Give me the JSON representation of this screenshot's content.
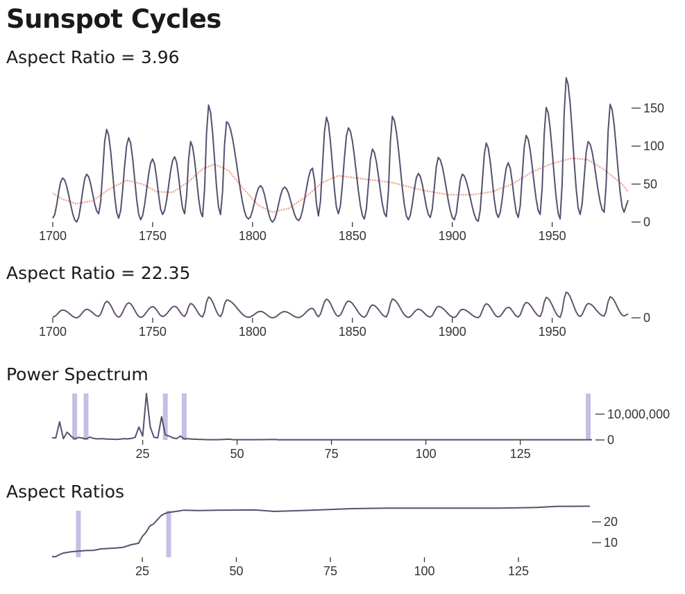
{
  "page": {
    "title": "Sunspot Cycles"
  },
  "colors": {
    "series": "#55506e",
    "smooth": "#ef9a85",
    "highlight": "#c5bfe6",
    "axis": "#333333"
  },
  "chart_data": [
    {
      "type": "line",
      "title": "Aspect Ratio = 3.96",
      "x_axis": {
        "ticks": [
          1700,
          1750,
          1800,
          1850,
          1900,
          1950
        ],
        "labels": [
          "1700",
          "1750",
          "1800",
          "1850",
          "1900",
          "1950"
        ]
      },
      "y_axis": {
        "ticks": [
          0,
          50,
          100,
          150
        ],
        "labels": [
          "0",
          "50",
          "100",
          "150"
        ],
        "side": "right"
      },
      "xlim": [
        1700,
        1988
      ],
      "ylim": [
        0,
        190
      ],
      "series": [
        {
          "role": "yearly",
          "peaks": [
            [
              1705,
              58
            ],
            [
              1717,
              63
            ],
            [
              1727,
              122
            ],
            [
              1738,
              111
            ],
            [
              1750,
              83
            ],
            [
              1761,
              86
            ],
            [
              1769,
              106
            ],
            [
              1778,
              154
            ],
            [
              1787,
              132
            ],
            [
              1804,
              48
            ],
            [
              1816,
              46
            ],
            [
              1830,
              71
            ],
            [
              1837,
              138
            ],
            [
              1848,
              124
            ],
            [
              1860,
              96
            ],
            [
              1870,
              139
            ],
            [
              1883,
              64
            ],
            [
              1893,
              85
            ],
            [
              1905,
              63
            ],
            [
              1917,
              104
            ],
            [
              1928,
              78
            ],
            [
              1937,
              114
            ],
            [
              1947,
              151
            ],
            [
              1957,
              190
            ],
            [
              1968,
              106
            ],
            [
              1979,
              155
            ]
          ],
          "minima": [
            [
              1700,
              5
            ],
            [
              1712,
              0
            ],
            [
              1723,
              11
            ],
            [
              1733,
              5
            ],
            [
              1744,
              3
            ],
            [
              1755,
              10
            ],
            [
              1766,
              11
            ],
            [
              1775,
              7
            ],
            [
              1784,
              10
            ],
            [
              1798,
              4
            ],
            [
              1810,
              0
            ],
            [
              1823,
              2
            ],
            [
              1833,
              8
            ],
            [
              1843,
              11
            ],
            [
              1856,
              4
            ],
            [
              1867,
              7
            ],
            [
              1878,
              3
            ],
            [
              1889,
              6
            ],
            [
              1901,
              3
            ],
            [
              1913,
              1
            ],
            [
              1923,
              6
            ],
            [
              1933,
              6
            ],
            [
              1944,
              10
            ],
            [
              1954,
              4
            ],
            [
              1964,
              10
            ],
            [
              1976,
              13
            ],
            [
              1986,
              13
            ]
          ],
          "end": [
            1988,
            29
          ]
        },
        {
          "role": "smoothed",
          "points": [
            [
              1700,
              38
            ],
            [
              1705,
              30
            ],
            [
              1712,
              24
            ],
            [
              1720,
              28
            ],
            [
              1728,
              43
            ],
            [
              1737,
              55
            ],
            [
              1745,
              50
            ],
            [
              1752,
              40
            ],
            [
              1760,
              39
            ],
            [
              1768,
              53
            ],
            [
              1775,
              70
            ],
            [
              1781,
              76
            ],
            [
              1788,
              68
            ],
            [
              1795,
              45
            ],
            [
              1803,
              22
            ],
            [
              1810,
              13
            ],
            [
              1818,
              18
            ],
            [
              1827,
              34
            ],
            [
              1835,
              52
            ],
            [
              1843,
              61
            ],
            [
              1855,
              57
            ],
            [
              1870,
              52
            ],
            [
              1885,
              42
            ],
            [
              1898,
              36
            ],
            [
              1910,
              36
            ],
            [
              1920,
              40
            ],
            [
              1930,
              50
            ],
            [
              1940,
              66
            ],
            [
              1950,
              77
            ],
            [
              1960,
              84
            ],
            [
              1968,
              82
            ],
            [
              1976,
              69
            ],
            [
              1985,
              50
            ],
            [
              1988,
              40
            ]
          ]
        }
      ]
    },
    {
      "type": "line",
      "title": "Aspect Ratio = 22.35",
      "x_axis": {
        "ticks": [
          1700,
          1750,
          1800,
          1850,
          1900,
          1950
        ],
        "labels": [
          "1700",
          "1750",
          "1800",
          "1850",
          "1900",
          "1950"
        ]
      },
      "y_axis": {
        "ticks": [
          0
        ],
        "labels": [
          "0"
        ],
        "side": "right"
      },
      "xlim": [
        1700,
        1988
      ],
      "ylim": [
        0,
        190
      ],
      "series_same_as_chart": 0
    },
    {
      "type": "line",
      "title": "Power Spectrum",
      "x_axis": {
        "ticks": [
          25,
          50,
          75,
          100,
          125
        ],
        "labels": [
          "25",
          "50",
          "75",
          "100",
          "125"
        ]
      },
      "y_axis": {
        "ticks": [
          0,
          10000000
        ],
        "labels": [
          "0",
          "10,000,000"
        ],
        "side": "right"
      },
      "xlim": [
        1,
        144
      ],
      "ylim": [
        0,
        18000000
      ],
      "values": [
        [
          1,
          800000
        ],
        [
          2,
          800000
        ],
        [
          3,
          7000000
        ],
        [
          4,
          500000
        ],
        [
          5,
          3000000
        ],
        [
          6,
          1500000
        ],
        [
          7,
          400000
        ],
        [
          8,
          1000000
        ],
        [
          9,
          700000
        ],
        [
          10,
          400000
        ],
        [
          11,
          1100000
        ],
        [
          12,
          600000
        ],
        [
          13,
          400000
        ],
        [
          14,
          500000
        ],
        [
          15,
          400000
        ],
        [
          16,
          300000
        ],
        [
          17,
          300000
        ],
        [
          18,
          200000
        ],
        [
          19,
          300000
        ],
        [
          20,
          500000
        ],
        [
          21,
          400000
        ],
        [
          22,
          600000
        ],
        [
          23,
          1000000
        ],
        [
          24,
          5000000
        ],
        [
          25,
          1500000
        ],
        [
          26,
          18000000
        ],
        [
          27,
          5000000
        ],
        [
          28,
          1000000
        ],
        [
          29,
          800000
        ],
        [
          30,
          9000000
        ],
        [
          31,
          2000000
        ],
        [
          32,
          1500000
        ],
        [
          33,
          800000
        ],
        [
          34,
          500000
        ],
        [
          35,
          1500000
        ],
        [
          36,
          400000
        ],
        [
          37,
          500000
        ],
        [
          38,
          300000
        ],
        [
          39,
          300000
        ],
        [
          40,
          200000
        ],
        [
          41,
          200000
        ],
        [
          42,
          100000
        ],
        [
          45,
          100000
        ],
        [
          48,
          300000
        ],
        [
          49,
          100000
        ],
        [
          55,
          100000
        ],
        [
          60,
          200000
        ],
        [
          61,
          50000
        ],
        [
          144,
          50000
        ]
      ],
      "highlights": [
        7,
        10,
        31,
        36,
        143
      ]
    },
    {
      "type": "line",
      "title": "Aspect Ratios",
      "x_axis": {
        "ticks": [
          25,
          50,
          75,
          100,
          125
        ],
        "labels": [
          "25",
          "50",
          "75",
          "100",
          "125"
        ]
      },
      "y_axis": {
        "ticks": [
          10,
          20
        ],
        "labels": [
          "10",
          "20"
        ],
        "side": "right"
      },
      "xlim": [
        1,
        144
      ],
      "ylim": [
        3.3,
        30.5
      ],
      "values": [
        [
          1,
          3.3
        ],
        [
          2,
          3.3
        ],
        [
          3,
          4.3
        ],
        [
          4,
          5.0
        ],
        [
          5,
          5.3
        ],
        [
          6,
          5.6
        ],
        [
          7,
          5.8
        ],
        [
          10,
          6.2
        ],
        [
          12,
          6.3
        ],
        [
          14,
          7.0
        ],
        [
          18,
          7.4
        ],
        [
          20,
          7.8
        ],
        [
          22,
          9.0
        ],
        [
          24,
          9.7
        ],
        [
          25,
          13
        ],
        [
          26,
          15
        ],
        [
          27,
          18
        ],
        [
          28,
          19
        ],
        [
          29,
          21
        ],
        [
          30,
          23
        ],
        [
          31,
          24
        ],
        [
          32,
          24.5
        ],
        [
          34,
          25
        ],
        [
          36,
          25.6
        ],
        [
          40,
          25.4
        ],
        [
          45,
          25.6
        ],
        [
          55,
          25.7
        ],
        [
          60,
          25.0
        ],
        [
          70,
          25.6
        ],
        [
          80,
          26.3
        ],
        [
          90,
          26.6
        ],
        [
          100,
          26.6
        ],
        [
          110,
          26.6
        ],
        [
          120,
          26.6
        ],
        [
          130,
          26.9
        ],
        [
          135,
          27.4
        ],
        [
          144,
          27.5
        ]
      ],
      "highlights": [
        8,
        32
      ]
    }
  ]
}
